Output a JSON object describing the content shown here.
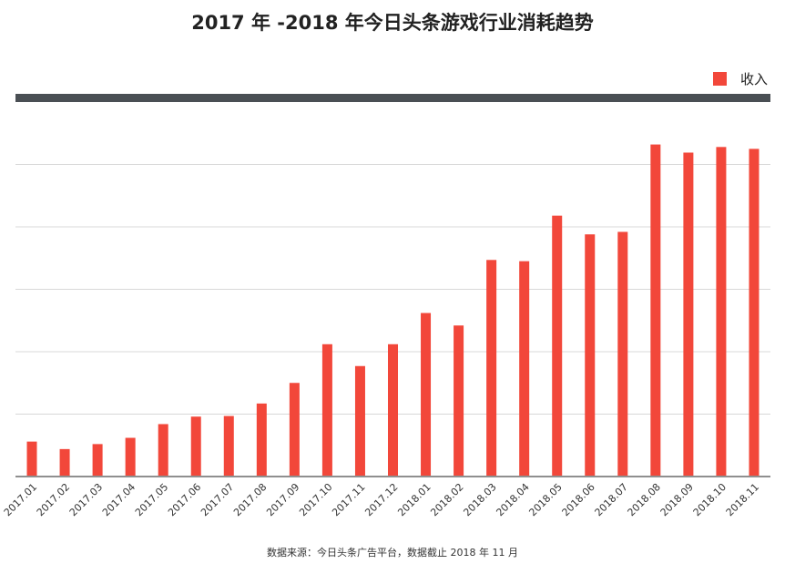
{
  "chart_data": {
    "type": "bar",
    "title": "2017 年 -2018 年今日头条游戏行业消耗趋势",
    "categories": [
      "2017.01",
      "2017.02",
      "2017.03",
      "2017.04",
      "2017.05",
      "2017.06",
      "2017.07",
      "2017.08",
      "2017.09",
      "2017.10",
      "2017.11",
      "2017.12",
      "2018.01",
      "2018.02",
      "2018.03",
      "2018.04",
      "2018.05",
      "2018.06",
      "2018.07",
      "2018.08",
      "2018.09",
      "2018.10",
      "2018.11"
    ],
    "series": [
      {
        "name": "收入",
        "color": "#f2473a",
        "values": [
          0.56,
          0.44,
          0.52,
          0.62,
          0.84,
          0.96,
          0.97,
          1.17,
          1.5,
          2.12,
          1.77,
          2.12,
          2.62,
          2.42,
          3.47,
          3.45,
          4.18,
          3.88,
          3.92,
          5.32,
          5.19,
          5.28,
          5.25
        ]
      }
    ],
    "ylim": [
      0,
      6
    ],
    "y_ticks_labeled": false,
    "grid": true,
    "legend_position": "top-right",
    "xlabel": "",
    "ylabel": ""
  },
  "source_note": "数据来源：今日头条广告平台，数据截止 2018 年 11 月",
  "colors": {
    "bar": "#f2473a",
    "top_band": "#4a4f54",
    "grid": "#d8d8d8",
    "axis": "#999999"
  }
}
